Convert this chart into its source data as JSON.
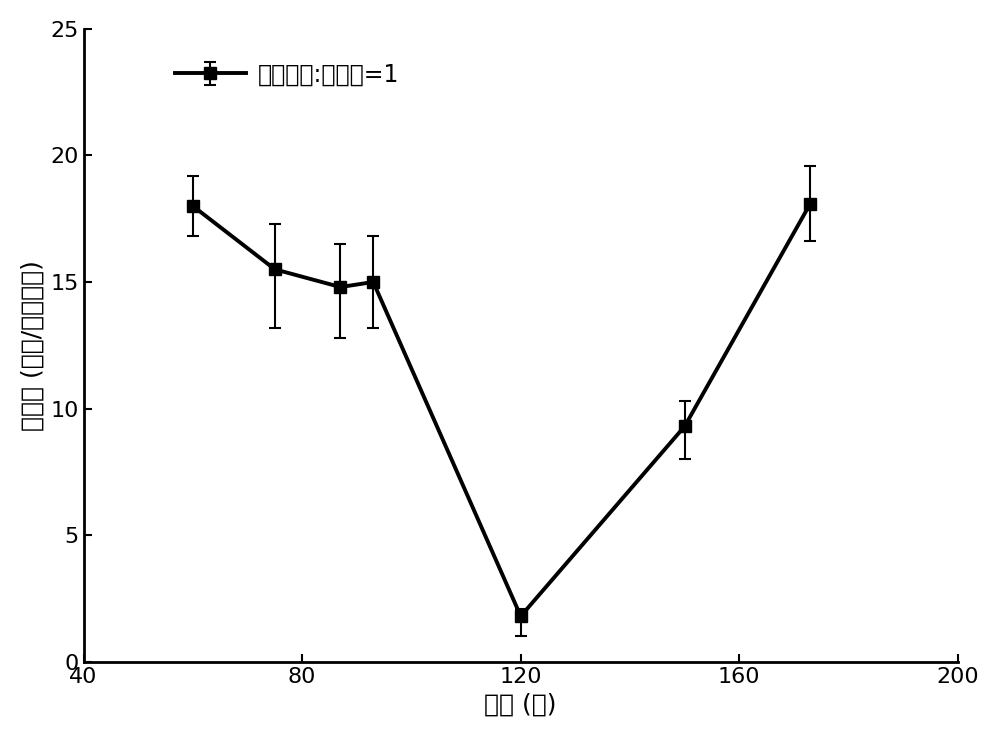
{
  "x": [
    60,
    75,
    87,
    93,
    120,
    150,
    173
  ],
  "y": [
    18.0,
    15.5,
    14.8,
    15.0,
    1.8,
    9.3,
    18.1
  ],
  "yerr_upper": [
    1.2,
    1.8,
    1.7,
    1.8,
    0.3,
    1.0,
    1.5
  ],
  "yerr_lower": [
    1.2,
    2.3,
    2.0,
    1.8,
    0.8,
    1.3,
    1.5
  ],
  "line_color": "#000000",
  "marker": "s",
  "markersize": 8,
  "linewidth": 2.8,
  "legend_label": "透明质酸:多巴胺=1",
  "xlabel": "时间 (分)",
  "ylabel": "吸附量 (纳克/平方厘米)",
  "xlim": [
    40,
    200
  ],
  "ylim": [
    0,
    25
  ],
  "xticks": [
    40,
    80,
    120,
    160,
    200
  ],
  "yticks": [
    0,
    5,
    10,
    15,
    20,
    25
  ],
  "background_color": "#ffffff",
  "label_fontsize": 18,
  "tick_fontsize": 16,
  "legend_fontsize": 17
}
